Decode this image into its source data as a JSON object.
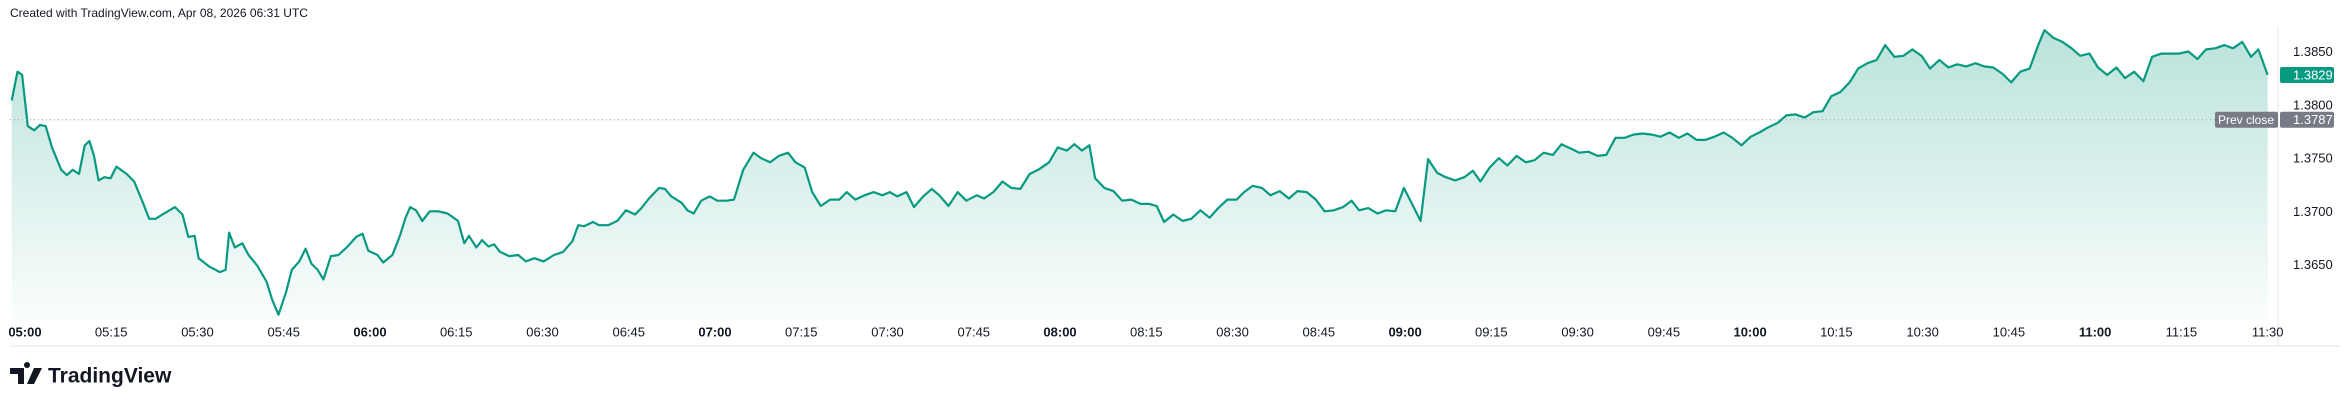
{
  "header": "Created with TradingView.com, Apr 08, 2026 06:31 UTC",
  "footer": "TradingView",
  "chart_data": {
    "type": "line",
    "color": "#089981",
    "xlim": [
      -2.6,
      391.8
    ],
    "ylim": [
      1.3599,
      1.3874
    ],
    "xticks": [
      {
        "value": 0,
        "label": "05:00"
      },
      {
        "value": 15,
        "label": "05:15"
      },
      {
        "value": 30,
        "label": "05:30"
      },
      {
        "value": 45,
        "label": "05:45"
      },
      {
        "value": 60,
        "label": "06:00"
      },
      {
        "value": 75,
        "label": "06:15"
      },
      {
        "value": 90,
        "label": "06:30"
      },
      {
        "value": 105,
        "label": "06:45"
      },
      {
        "value": 120,
        "label": "07:00"
      },
      {
        "value": 135,
        "label": "07:15"
      },
      {
        "value": 150,
        "label": "07:30"
      },
      {
        "value": 165,
        "label": "07:45"
      },
      {
        "value": 180,
        "label": "08:00"
      },
      {
        "value": 195,
        "label": "08:15"
      },
      {
        "value": 210,
        "label": "08:30"
      },
      {
        "value": 225,
        "label": "08:45"
      },
      {
        "value": 240,
        "label": "09:00"
      },
      {
        "value": 255,
        "label": "09:15"
      },
      {
        "value": 270,
        "label": "09:30"
      },
      {
        "value": 285,
        "label": "09:45"
      },
      {
        "value": 300,
        "label": "10:00"
      },
      {
        "value": 315,
        "label": "10:15"
      },
      {
        "value": 330,
        "label": "10:30"
      },
      {
        "value": 345,
        "label": "10:45"
      },
      {
        "value": 360,
        "label": "11:00"
      },
      {
        "value": 375,
        "label": "11:15"
      },
      {
        "value": 390,
        "label": "11:30"
      }
    ],
    "yticks": [
      {
        "value": 1.365,
        "label": "1.3650"
      },
      {
        "value": 1.37,
        "label": "1.3700"
      },
      {
        "value": 1.375,
        "label": "1.3750"
      },
      {
        "value": 1.38,
        "label": "1.3800"
      },
      {
        "value": 1.385,
        "label": "1.3850"
      }
    ],
    "prev_close": {
      "label": "Prev close",
      "value": 1.3787
    },
    "x": [
      -2.3,
      -1.3,
      -0.5,
      0.5,
      1.6,
      2.6,
      3.6,
      4.7,
      6.3,
      7.3,
      8.3,
      9.4,
      10.4,
      11.2,
      12.0,
      12.8,
      13.8,
      14.9,
      15.9,
      17.7,
      19.0,
      20.6,
      21.6,
      22.7,
      24.2,
      26.1,
      27.4,
      28.4,
      29.5,
      30.2,
      32.1,
      33.9,
      34.9,
      35.5,
      36.5,
      37.8,
      38.9,
      40.4,
      42.0,
      43.0,
      44.1,
      45.4,
      46.4,
      47.7,
      48.8,
      49.8,
      50.9,
      51.9,
      53.2,
      54.5,
      56.1,
      57.6,
      58.7,
      59.7,
      61.3,
      62.3,
      63.9,
      65.2,
      66.2,
      67.0,
      68.0,
      69.1,
      70.4,
      71.9,
      73.5,
      75.3,
      76.4,
      77.2,
      78.5,
      79.5,
      80.6,
      81.6,
      82.6,
      84.2,
      85.8,
      87.1,
      88.6,
      90.2,
      92.0,
      93.6,
      95.2,
      96.2,
      97.2,
      98.8,
      99.8,
      101.4,
      103.0,
      104.5,
      106.1,
      107.2,
      108.5,
      110.3,
      111.3,
      112.4,
      114.2,
      115.2,
      116.3,
      117.6,
      119.1,
      120.4,
      122.0,
      123.3,
      124.9,
      126.7,
      128.0,
      129.6,
      131.1,
      132.7,
      134.0,
      135.6,
      136.9,
      138.4,
      140.0,
      141.6,
      142.9,
      144.4,
      146.0,
      147.6,
      149.1,
      150.4,
      151.7,
      153.3,
      154.6,
      156.2,
      157.7,
      159.0,
      160.6,
      162.2,
      163.7,
      165.5,
      166.8,
      168.4,
      170.0,
      171.5,
      173.1,
      174.7,
      176.2,
      178.1,
      179.6,
      181.2,
      182.5,
      183.8,
      185.1,
      186.1,
      187.7,
      189.3,
      190.8,
      192.4,
      194.0,
      195.5,
      196.8,
      198.1,
      199.7,
      201.3,
      202.8,
      204.4,
      206.0,
      207.5,
      209.1,
      210.7,
      212.0,
      213.5,
      215.1,
      216.6,
      218.2,
      219.8,
      221.3,
      222.9,
      224.5,
      226.0,
      227.6,
      229.2,
      230.7,
      232.0,
      233.6,
      235.2,
      236.7,
      238.3,
      239.8,
      241.4,
      242.7,
      244.0,
      245.6,
      247.1,
      248.7,
      250.3,
      251.8,
      253.1,
      254.7,
      256.3,
      257.8,
      259.4,
      261.0,
      262.5,
      264.1,
      265.7,
      267.2,
      268.8,
      270.3,
      271.9,
      273.5,
      275.0,
      276.6,
      278.2,
      279.7,
      281.3,
      282.9,
      284.4,
      286.0,
      287.6,
      289.1,
      290.7,
      292.2,
      293.8,
      295.4,
      296.9,
      298.5,
      300.1,
      301.6,
      303.2,
      304.8,
      306.3,
      307.9,
      309.5,
      311.0,
      312.6,
      314.1,
      315.7,
      317.3,
      318.8,
      320.4,
      322.0,
      323.5,
      325.1,
      326.7,
      328.2,
      329.8,
      331.3,
      332.9,
      334.5,
      336.0,
      337.6,
      339.2,
      340.7,
      342.3,
      343.9,
      345.4,
      347.0,
      348.6,
      350.1,
      351.2,
      352.7,
      354.3,
      355.9,
      357.4,
      359.0,
      360.5,
      362.1,
      363.7,
      365.2,
      366.8,
      368.4,
      369.9,
      371.5,
      373.1,
      374.6,
      376.2,
      377.8,
      379.3,
      380.9,
      382.5,
      384.0,
      385.6,
      387.1,
      388.4,
      390
    ],
    "values": [
      1.3805,
      1.3832,
      1.3829,
      1.3781,
      1.3777,
      1.3782,
      1.3781,
      1.3761,
      1.374,
      1.3735,
      1.374,
      1.3736,
      1.3763,
      1.3767,
      1.3753,
      1.373,
      1.3733,
      1.3732,
      1.3743,
      1.3736,
      1.3729,
      1.3708,
      1.3694,
      1.3694,
      1.3699,
      1.3705,
      1.3698,
      1.3677,
      1.3678,
      1.3657,
      1.3649,
      1.3644,
      1.3646,
      1.3681,
      1.3667,
      1.3671,
      1.366,
      1.365,
      1.3635,
      1.3618,
      1.3604,
      1.3625,
      1.3646,
      1.3654,
      1.3666,
      1.3652,
      1.3646,
      1.3637,
      1.3659,
      1.366,
      1.3668,
      1.3677,
      1.368,
      1.3664,
      1.366,
      1.3653,
      1.366,
      1.3678,
      1.3695,
      1.3705,
      1.3702,
      1.3692,
      1.3701,
      1.3701,
      1.3699,
      1.3692,
      1.3671,
      1.3678,
      1.3667,
      1.3674,
      1.3668,
      1.367,
      1.3663,
      1.3659,
      1.366,
      1.3654,
      1.3657,
      1.3654,
      1.366,
      1.3663,
      1.3673,
      1.3688,
      1.3687,
      1.3691,
      1.3688,
      1.3688,
      1.3692,
      1.3702,
      1.3698,
      1.3704,
      1.3713,
      1.3723,
      1.3722,
      1.3715,
      1.3709,
      1.3702,
      1.3699,
      1.3711,
      1.3715,
      1.3711,
      1.3711,
      1.3712,
      1.374,
      1.3756,
      1.3751,
      1.3747,
      1.3753,
      1.3756,
      1.3747,
      1.3742,
      1.3719,
      1.3706,
      1.3712,
      1.3712,
      1.3719,
      1.3712,
      1.3716,
      1.3719,
      1.3716,
      1.3719,
      1.3715,
      1.3719,
      1.3705,
      1.3715,
      1.3722,
      1.3716,
      1.3706,
      1.3719,
      1.3711,
      1.3716,
      1.3713,
      1.3719,
      1.3729,
      1.3723,
      1.3722,
      1.3736,
      1.374,
      1.3747,
      1.3761,
      1.3758,
      1.3764,
      1.3758,
      1.3763,
      1.3732,
      1.3723,
      1.372,
      1.3711,
      1.3712,
      1.3708,
      1.3708,
      1.3706,
      1.3691,
      1.3698,
      1.3692,
      1.3694,
      1.3702,
      1.3695,
      1.3704,
      1.3712,
      1.3712,
      1.3719,
      1.3725,
      1.3723,
      1.3716,
      1.372,
      1.3713,
      1.372,
      1.3719,
      1.3712,
      1.3701,
      1.3702,
      1.3705,
      1.3711,
      1.3702,
      1.3704,
      1.3699,
      1.3702,
      1.3701,
      1.3723,
      1.3706,
      1.3692,
      1.375,
      1.3737,
      1.3733,
      1.373,
      1.3733,
      1.3739,
      1.3729,
      1.3742,
      1.3751,
      1.3744,
      1.3753,
      1.3747,
      1.3749,
      1.3756,
      1.3754,
      1.3764,
      1.376,
      1.3756,
      1.3757,
      1.3753,
      1.3754,
      1.377,
      1.377,
      1.3773,
      1.3774,
      1.3773,
      1.3771,
      1.3775,
      1.377,
      1.3774,
      1.3768,
      1.3768,
      1.3771,
      1.3775,
      1.377,
      1.3763,
      1.3771,
      1.3775,
      1.378,
      1.3784,
      1.3791,
      1.3792,
      1.3789,
      1.3794,
      1.3795,
      1.3809,
      1.3813,
      1.3822,
      1.3835,
      1.384,
      1.3843,
      1.3857,
      1.3846,
      1.3847,
      1.3853,
      1.3847,
      1.3835,
      1.3843,
      1.3836,
      1.3839,
      1.3837,
      1.384,
      1.3837,
      1.3836,
      1.383,
      1.3822,
      1.3832,
      1.3835,
      1.3857,
      1.3871,
      1.3864,
      1.386,
      1.3854,
      1.3847,
      1.3849,
      1.3836,
      1.3829,
      1.3836,
      1.3826,
      1.3832,
      1.3823,
      1.3846,
      1.3849,
      1.3849,
      1.3849,
      1.3851,
      1.3844,
      1.3853,
      1.3854,
      1.3857,
      1.3854,
      1.386,
      1.3846,
      1.3853,
      1.3829
    ]
  }
}
